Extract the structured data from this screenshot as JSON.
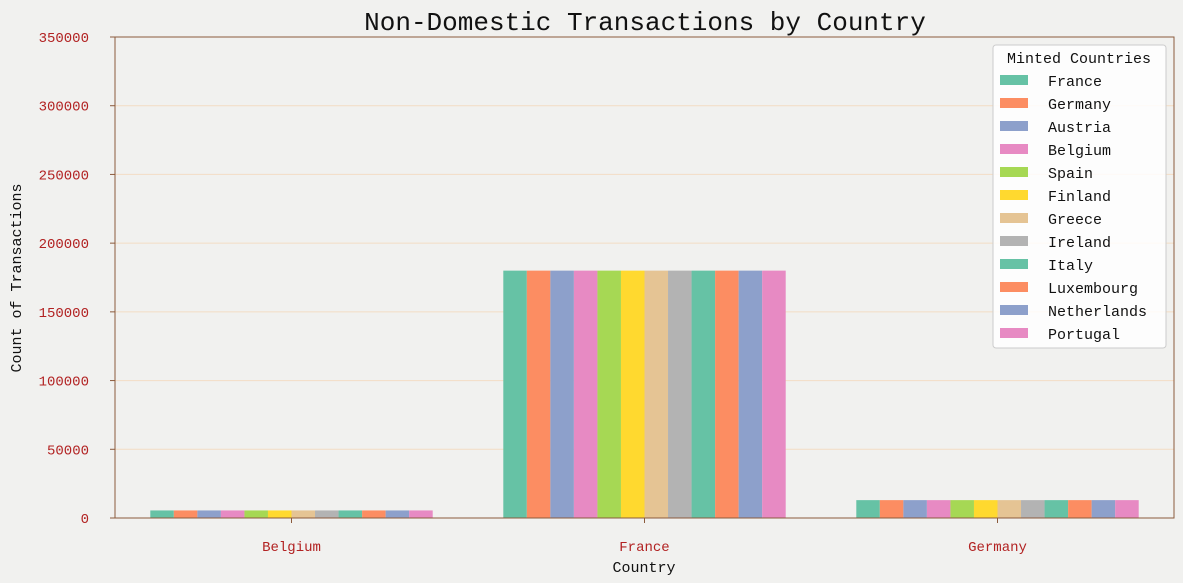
{
  "chart_data": {
    "type": "bar",
    "title": "Non-Domestic Transactions by Country",
    "xlabel": "Country",
    "ylabel": "Count of Transactions",
    "categories": [
      "Belgium",
      "France",
      "Germany"
    ],
    "ylim": [
      0,
      350000
    ],
    "yticks": [
      0,
      50000,
      100000,
      150000,
      200000,
      250000,
      300000,
      350000
    ],
    "grid": true,
    "legend_title": "Minted Countries",
    "legend_position": "top-right",
    "series": [
      {
        "name": "France",
        "color": "#66c2a5",
        "values": [
          5500,
          180000,
          13000
        ]
      },
      {
        "name": "Germany",
        "color": "#fc8d62",
        "values": [
          5500,
          180000,
          13000
        ]
      },
      {
        "name": "Austria",
        "color": "#8da0cb",
        "values": [
          5500,
          180000,
          13000
        ]
      },
      {
        "name": "Belgium",
        "color": "#e78ac3",
        "values": [
          5500,
          180000,
          13000
        ]
      },
      {
        "name": "Spain",
        "color": "#a6d854",
        "values": [
          5500,
          180000,
          13000
        ]
      },
      {
        "name": "Finland",
        "color": "#ffd92f",
        "values": [
          5500,
          180000,
          13000
        ]
      },
      {
        "name": "Greece",
        "color": "#e5c494",
        "values": [
          5500,
          180000,
          13000
        ]
      },
      {
        "name": "Ireland",
        "color": "#b3b3b3",
        "values": [
          5500,
          180000,
          13000
        ]
      },
      {
        "name": "Italy",
        "color": "#66c2a5",
        "values": [
          5500,
          180000,
          13000
        ]
      },
      {
        "name": "Luxembourg",
        "color": "#fc8d62",
        "values": [
          5500,
          180000,
          13000
        ]
      },
      {
        "name": "Netherlands",
        "color": "#8da0cb",
        "values": [
          5500,
          180000,
          13000
        ]
      },
      {
        "name": "Portugal",
        "color": "#e78ac3",
        "values": [
          5500,
          180000,
          13000
        ]
      }
    ]
  }
}
